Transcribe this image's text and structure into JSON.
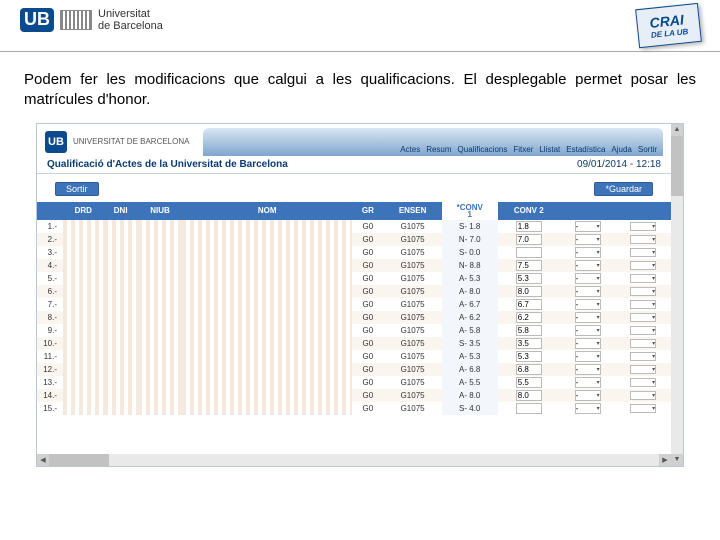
{
  "header": {
    "ub_mark": "UB",
    "university_line1": "Universitat",
    "university_line2": "de Barcelona",
    "crai_main": "CRAI",
    "crai_sub": "DE LA UB"
  },
  "description": "Podem fer les modificacions que calgui a les qualificacions. El desplegable permet posar les matrícules d'honor.",
  "panel": {
    "menu": [
      "Actes",
      "Resum",
      "Qualificacions",
      "Fitxer",
      "Llistat",
      "Estadística",
      "Ajuda",
      "Sortir"
    ],
    "title": "Qualificació d'Actes de la Universitat de Barcelona",
    "datetime": "09/01/2014 - 12:18",
    "btn_sortir": "Sortir",
    "btn_guardar": "*Guardar",
    "columns": [
      "",
      "DRD",
      "DNI",
      "NIUB",
      "NOM",
      "GR",
      "ENSEN",
      "*CONV 1",
      "CONV 2",
      "",
      ""
    ],
    "rows": [
      {
        "idx": "1.-",
        "gr": "G0",
        "ensen": "G1075",
        "conv1": "S- 1.8",
        "conv2": "1.8",
        "sel": "-"
      },
      {
        "idx": "2.-",
        "gr": "G0",
        "ensen": "G1075",
        "conv1": "N- 7.0",
        "conv2": "7.0",
        "sel": "-"
      },
      {
        "idx": "3.-",
        "gr": "G0",
        "ensen": "G1075",
        "conv1": "S- 0.0",
        "conv2": "",
        "sel": "-"
      },
      {
        "idx": "4.-",
        "gr": "G0",
        "ensen": "G1075",
        "conv1": "N- 8.8",
        "conv2": "7.5",
        "sel": "-"
      },
      {
        "idx": "5.-",
        "gr": "G0",
        "ensen": "G1075",
        "conv1": "A- 5.3",
        "conv2": "5.3",
        "sel": "-"
      },
      {
        "idx": "6.-",
        "gr": "G0",
        "ensen": "G1075",
        "conv1": "A- 8.0",
        "conv2": "8.0",
        "sel": "-"
      },
      {
        "idx": "7.-",
        "gr": "G0",
        "ensen": "G1075",
        "conv1": "A- 6.7",
        "conv2": "6.7",
        "sel": "-"
      },
      {
        "idx": "8.-",
        "gr": "G0",
        "ensen": "G1075",
        "conv1": "A- 6.2",
        "conv2": "6.2",
        "sel": "-"
      },
      {
        "idx": "9.-",
        "gr": "G0",
        "ensen": "G1075",
        "conv1": "A- 5.8",
        "conv2": "5.8",
        "sel": "-"
      },
      {
        "idx": "10.-",
        "gr": "G0",
        "ensen": "G1075",
        "conv1": "S- 3.5",
        "conv2": "3.5",
        "sel": "-"
      },
      {
        "idx": "11.-",
        "gr": "G0",
        "ensen": "G1075",
        "conv1": "A- 5.3",
        "conv2": "5.3",
        "sel": "-"
      },
      {
        "idx": "12.-",
        "gr": "G0",
        "ensen": "G1075",
        "conv1": "A- 6.8",
        "conv2": "6.8",
        "sel": "-"
      },
      {
        "idx": "13.-",
        "gr": "G0",
        "ensen": "G1075",
        "conv1": "A- 5.5",
        "conv2": "5.5",
        "sel": "-"
      },
      {
        "idx": "14.-",
        "gr": "G0",
        "ensen": "G1075",
        "conv1": "A- 8.0",
        "conv2": "8.0",
        "sel": "-"
      },
      {
        "idx": "15.-",
        "gr": "G0",
        "ensen": "G1075",
        "conv1": "S- 4.0",
        "conv2": "",
        "sel": "-"
      }
    ]
  },
  "colors": {
    "brand": "#0b4a8f",
    "bar_top": "#d9e6f3",
    "bar_bottom": "#7fa6cf",
    "th_bg": "#3d73b8",
    "row_alt": "#fbf5ef",
    "mask1": "#f5e8de"
  }
}
